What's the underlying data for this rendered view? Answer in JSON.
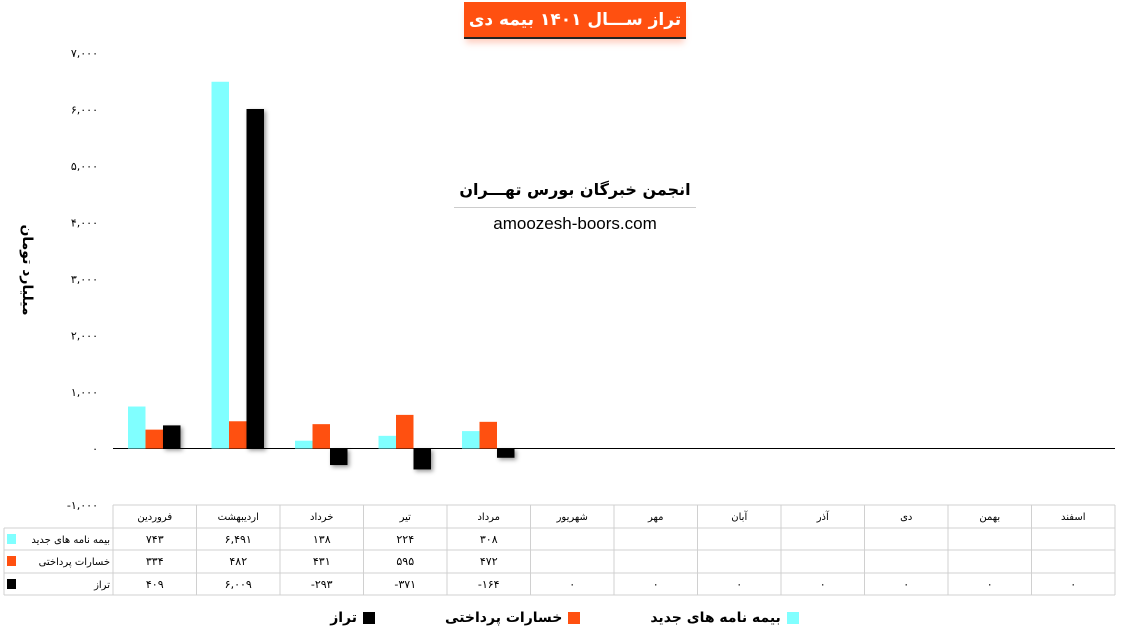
{
  "title": "تراز ســـال ۱۴۰۱ بیمه دی",
  "watermark": {
    "line1": "انجمن خبرگان بورس تهـــران",
    "line2": "amoozesh-boors.com"
  },
  "colors": {
    "new_policies": "#80ffff",
    "claims": "#ff5010",
    "balance": "#000000"
  },
  "chart_data": {
    "type": "bar",
    "ylabel": "میلیارد تومان",
    "ylim": [
      -1000,
      7000
    ],
    "yticks": [
      -1000,
      0,
      1000,
      2000,
      3000,
      4000,
      5000,
      6000,
      7000
    ],
    "ytick_labels": [
      "-۱,۰۰۰",
      "۰",
      "۱,۰۰۰",
      "۲,۰۰۰",
      "۳,۰۰۰",
      "۴,۰۰۰",
      "۵,۰۰۰",
      "۶,۰۰۰",
      "۷,۰۰۰"
    ],
    "categories": [
      "فروردین",
      "اردیبهشت",
      "خرداد",
      "تیر",
      "مرداد",
      "شهریور",
      "مهر",
      "آبان",
      "آذر",
      "دی",
      "بهمن",
      "اسفند"
    ],
    "series": [
      {
        "name": "بیمه نامه های جدید",
        "color": "#80ffff",
        "values": [
          743,
          6491,
          138,
          224,
          308,
          null,
          null,
          null,
          null,
          null,
          null,
          null
        ],
        "labels": [
          "۷۴۳",
          "۶,۴۹۱",
          "۱۳۸",
          "۲۲۴",
          "۳۰۸",
          "",
          "",
          "",
          "",
          "",
          "",
          ""
        ]
      },
      {
        "name": "خسارات پرداختی",
        "color": "#ff5010",
        "values": [
          334,
          482,
          431,
          595,
          472,
          null,
          null,
          null,
          null,
          null,
          null,
          null
        ],
        "labels": [
          "۳۳۴",
          "۴۸۲",
          "۴۳۱",
          "۵۹۵",
          "۴۷۲",
          "",
          "",
          "",
          "",
          "",
          "",
          ""
        ]
      },
      {
        "name": "تراز",
        "color": "#000000",
        "values": [
          409,
          6009,
          -293,
          -371,
          -164,
          0,
          0,
          0,
          0,
          0,
          0,
          0
        ],
        "labels": [
          "۴۰۹",
          "۶,۰۰۹",
          "-۲۹۳",
          "-۳۷۱",
          "-۱۶۴",
          "۰",
          "۰",
          "۰",
          "۰",
          "۰",
          "۰",
          "۰"
        ]
      }
    ],
    "legend_position": "bottom",
    "grid": false,
    "data_table": true
  }
}
